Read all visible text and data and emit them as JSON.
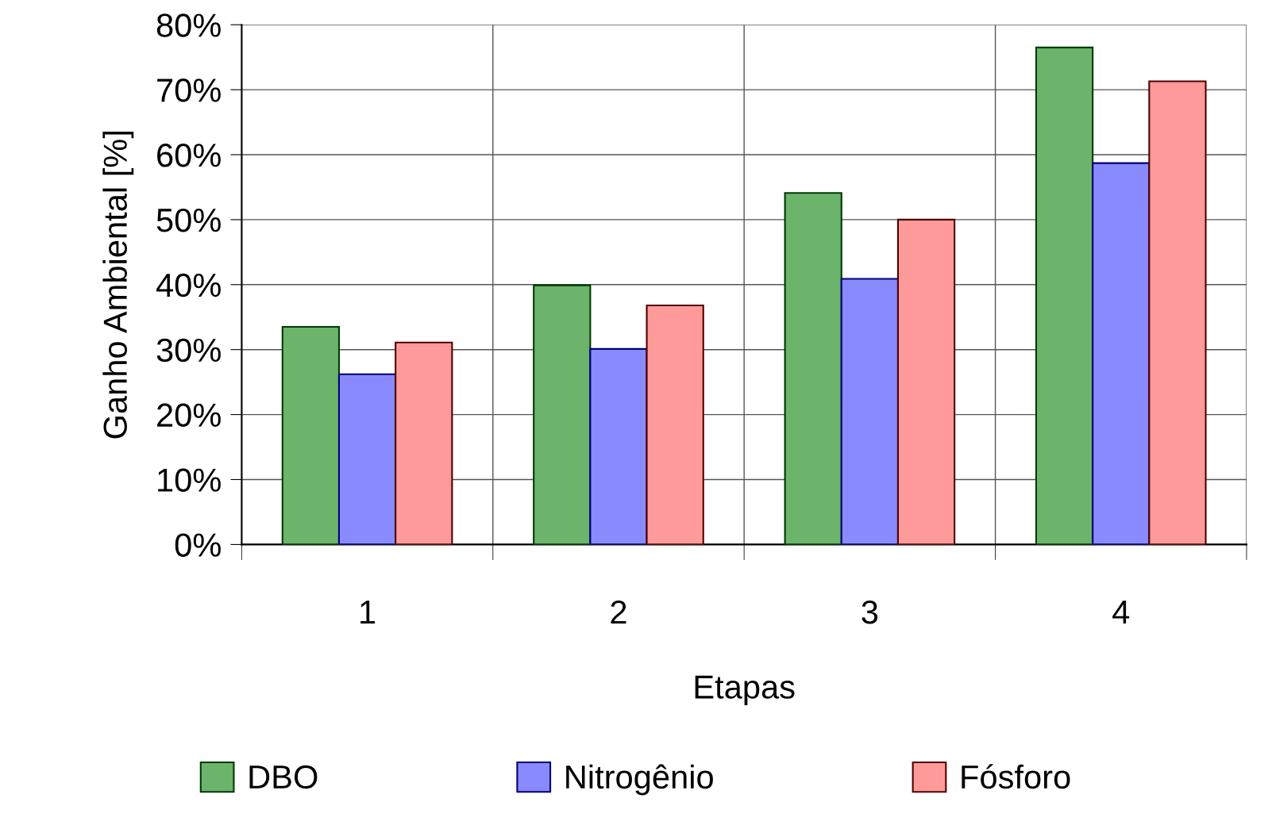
{
  "chart_data": {
    "type": "bar",
    "xlabel": "Etapas",
    "ylabel": "Ganho Ambiental [%]",
    "categories": [
      "1",
      "2",
      "3",
      "4"
    ],
    "series": [
      {
        "name": "DBO",
        "color": "#6cb36c",
        "values": [
          33.5,
          39.9,
          54.1,
          76.5
        ]
      },
      {
        "name": "Nitrogênio",
        "color": "#8a8aff",
        "values": [
          26.2,
          30.1,
          40.9,
          58.7
        ]
      },
      {
        "name": "Fósforo",
        "color": "#ff9a9a",
        "values": [
          31.1,
          36.8,
          50.0,
          71.3
        ]
      }
    ],
    "ylim": [
      0,
      80
    ],
    "yticks": [
      {
        "value": 0,
        "label": "0%"
      },
      {
        "value": 10,
        "label": "10%"
      },
      {
        "value": 20,
        "label": "20%"
      },
      {
        "value": 30,
        "label": "30%"
      },
      {
        "value": 40,
        "label": "40%"
      },
      {
        "value": 50,
        "label": "50%"
      },
      {
        "value": 60,
        "label": "60%"
      },
      {
        "value": 70,
        "label": "70%"
      },
      {
        "value": 80,
        "label": "80%"
      }
    ],
    "grid": true,
    "legend": "bottom"
  }
}
